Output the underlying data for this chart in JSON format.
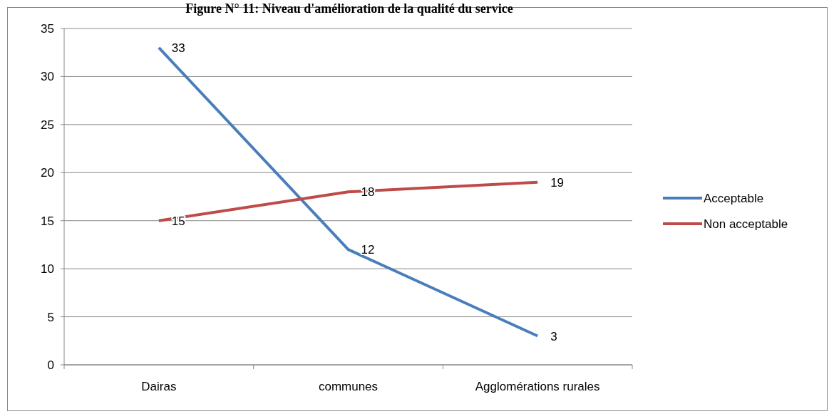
{
  "chart_data": {
    "type": "line",
    "title": "Figure N° 11: Niveau d'amélioration de la qualité du service",
    "categories": [
      "Dairas",
      "communes",
      "Agglomérations rurales"
    ],
    "series": [
      {
        "name": "Acceptable",
        "color": "#4a7ebb",
        "values": [
          33,
          12,
          3
        ]
      },
      {
        "name": "Non acceptable",
        "color": "#be4b48",
        "values": [
          15,
          18,
          19
        ]
      }
    ],
    "ylim": [
      0,
      35
    ],
    "yticks": [
      0,
      5,
      10,
      15,
      20,
      25,
      30,
      35
    ],
    "grid": "y",
    "legend": "right",
    "data_labels": true,
    "marker": "none",
    "line_style": "solid"
  }
}
